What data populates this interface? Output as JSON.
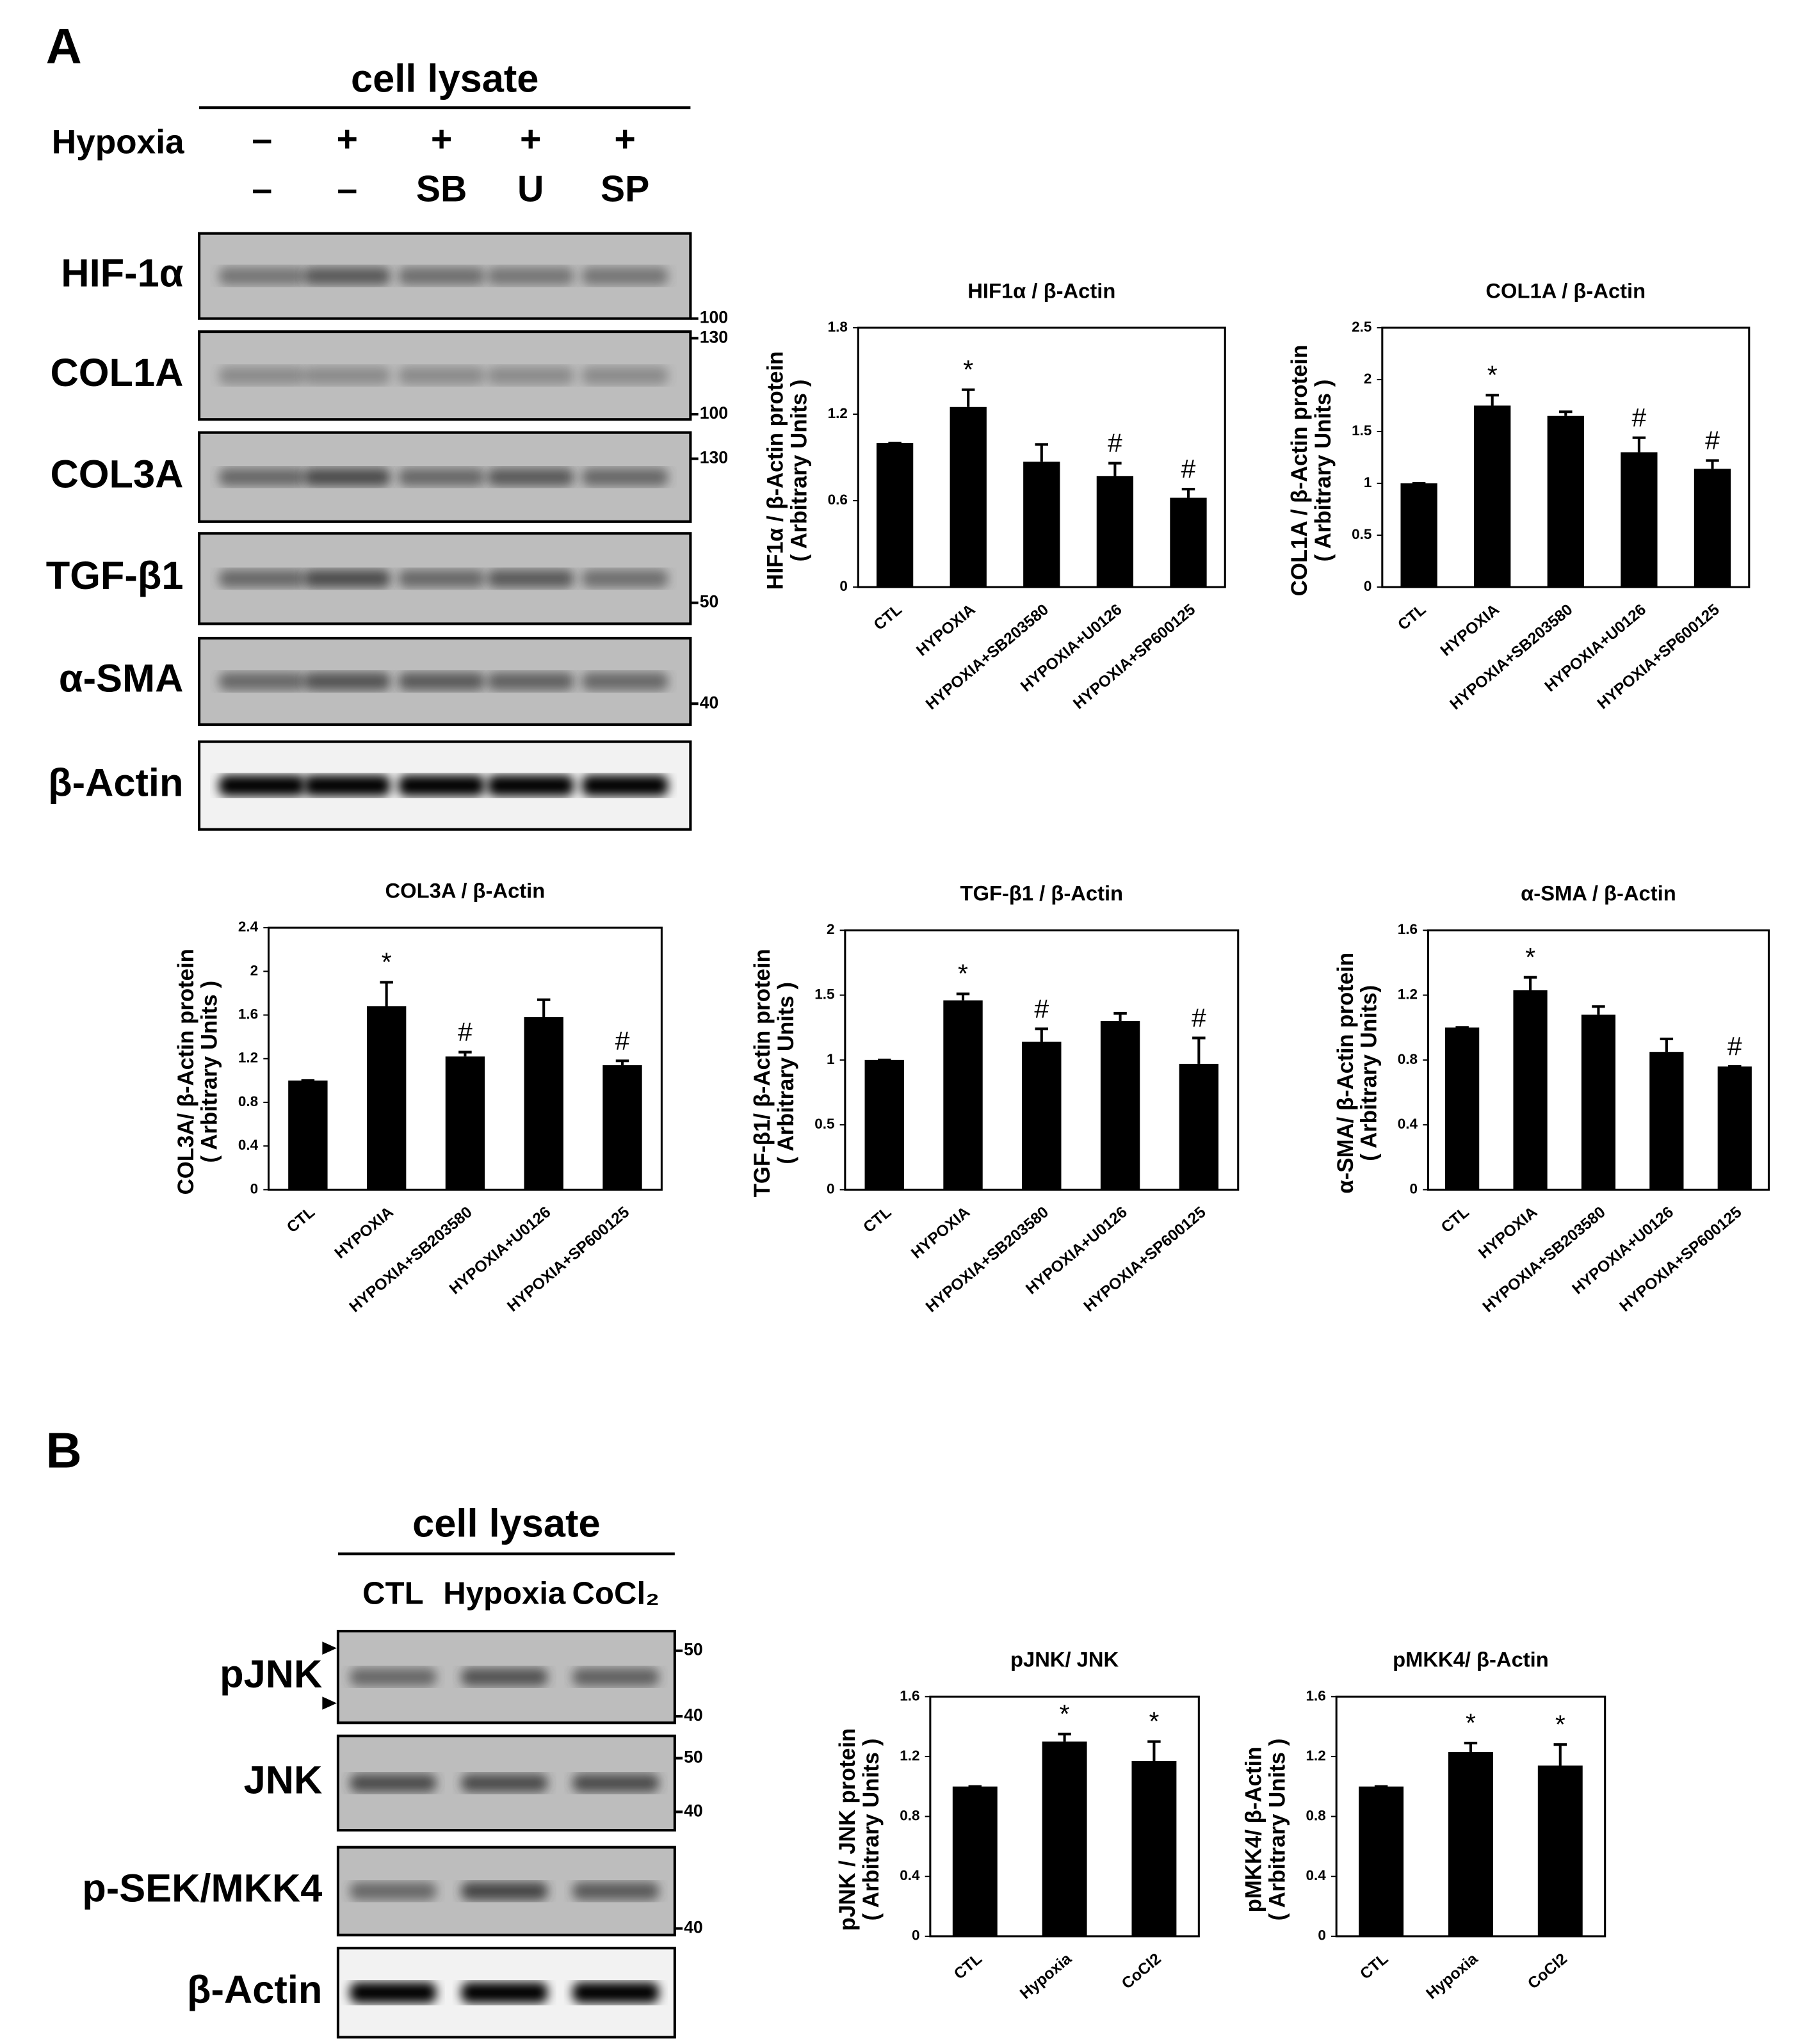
{
  "blot_a": {
    "panel": "A",
    "header": "cell lysate",
    "treatment_label": "Hypoxia",
    "row1": [
      "–",
      "+",
      "+",
      "+",
      "+"
    ],
    "row2": [
      "–",
      "–",
      "SB",
      "U",
      "SP"
    ],
    "rows": [
      {
        "label": "HIF-1α",
        "markers": [
          "100"
        ]
      },
      {
        "label": "COL1A",
        "markers": [
          "130",
          "100"
        ]
      },
      {
        "label": "COL3A",
        "markers": [
          "130"
        ]
      },
      {
        "label": "TGF-β1",
        "markers": [
          "50"
        ]
      },
      {
        "label": "α-SMA",
        "markers": [
          "40"
        ]
      },
      {
        "label": "β-Actin",
        "markers": []
      }
    ]
  },
  "blot_b": {
    "panel": "B",
    "header": "cell lysate",
    "lanes": [
      "CTL",
      "Hypoxia",
      "CoCl₂"
    ],
    "rows": [
      {
        "label": "pJNK",
        "markers": [
          "50",
          "40"
        ]
      },
      {
        "label": "JNK",
        "markers": [
          "50",
          "40"
        ]
      },
      {
        "label": "p-SEK/MKK4",
        "markers": [
          "40"
        ]
      },
      {
        "label": "β-Actin",
        "markers": []
      }
    ]
  },
  "chart_data": [
    {
      "type": "bar",
      "title": "HIF1α / β-Actin",
      "ylabel": [
        "HIF1α / β-Actin protein",
        "( Arbitrary Units )"
      ],
      "categories": [
        "CTL",
        "HYPOXIA",
        "HYPOXIA+SB203580",
        "HYPOXIA+U0126",
        "HYPOXIA+SP600125"
      ],
      "values": [
        1.0,
        1.25,
        0.87,
        0.77,
        0.62
      ],
      "errors": [
        0,
        0.12,
        0.12,
        0.09,
        0.06
      ],
      "annotations": [
        null,
        "*",
        null,
        "#",
        "#"
      ],
      "color": "#000000",
      "ylim": [
        0,
        1.8
      ],
      "yticks": [
        0,
        0.6,
        1.2,
        1.8
      ]
    },
    {
      "type": "bar",
      "title": "COL1A / β-Actin",
      "ylabel": [
        "COL1A / β-Actin protein",
        "( Arbitrary Units )"
      ],
      "categories": [
        "CTL",
        "HYPOXIA",
        "HYPOXIA+SB203580",
        "HYPOXIA+U0126",
        "HYPOXIA+SP600125"
      ],
      "values": [
        1.0,
        1.75,
        1.65,
        1.3,
        1.14
      ],
      "errors": [
        0,
        0.1,
        0.04,
        0.14,
        0.08
      ],
      "annotations": [
        null,
        "*",
        null,
        "#",
        "#"
      ],
      "color": "#000000",
      "ylim": [
        0,
        2.5
      ],
      "yticks": [
        0,
        0.5,
        1,
        1.5,
        2,
        2.5
      ]
    },
    {
      "type": "bar",
      "title": "COL3A / β-Actin",
      "ylabel": [
        "COL3A/ β-Actin protein",
        "( Arbitrary Units )"
      ],
      "categories": [
        "CTL",
        "HYPOXIA",
        "HYPOXIA+SB203580",
        "HYPOXIA+U0126",
        "HYPOXIA+SP600125"
      ],
      "values": [
        1.0,
        1.68,
        1.22,
        1.58,
        1.14
      ],
      "errors": [
        0,
        0.22,
        0.04,
        0.16,
        0.04
      ],
      "annotations": [
        null,
        "*",
        "#",
        null,
        "#"
      ],
      "color": "#000000",
      "ylim": [
        0,
        2.4
      ],
      "yticks": [
        0,
        0.4,
        0.8,
        1.2,
        1.6,
        2,
        2.4
      ]
    },
    {
      "type": "bar",
      "title": "TGF-β1 / β-Actin",
      "ylabel": [
        "TGF-β1/ β-Actin protein",
        "( Arbitrary Units )"
      ],
      "categories": [
        "CTL",
        "HYPOXIA",
        "HYPOXIA+SB203580",
        "HYPOXIA+U0126",
        "HYPOXIA+SP600125"
      ],
      "values": [
        1.0,
        1.46,
        1.14,
        1.3,
        0.97
      ],
      "errors": [
        0,
        0.05,
        0.1,
        0.06,
        0.2
      ],
      "annotations": [
        null,
        "*",
        "#",
        null,
        "#"
      ],
      "color": "#000000",
      "ylim": [
        0,
        2
      ],
      "yticks": [
        0,
        0.5,
        1,
        1.5,
        2
      ]
    },
    {
      "type": "bar",
      "title": "α-SMA / β-Actin",
      "ylabel": [
        "α-SMA/ β-Actin protein",
        "( Arbitrary Units)"
      ],
      "categories": [
        "CTL",
        "HYPOXIA",
        "HYPOXIA+SB203580",
        "HYPOXIA+U0126",
        "HYPOXIA+SP600125"
      ],
      "values": [
        1.0,
        1.23,
        1.08,
        0.85,
        0.76
      ],
      "errors": [
        0,
        0.08,
        0.05,
        0.08,
        0
      ],
      "annotations": [
        null,
        "*",
        null,
        null,
        "#"
      ],
      "color": "#000000",
      "ylim": [
        0,
        1.6
      ],
      "yticks": [
        0,
        0.4,
        0.8,
        1.2,
        1.6
      ]
    },
    {
      "type": "bar",
      "title": "pJNK/ JNK",
      "ylabel": [
        "pJNK / JNK protein",
        "( Arbitrary Units )"
      ],
      "categories": [
        "CTL",
        "Hypoxia",
        "CoCl2"
      ],
      "values": [
        1.0,
        1.3,
        1.17
      ],
      "errors": [
        0,
        0.05,
        0.13
      ],
      "annotations": [
        null,
        "*",
        "*"
      ],
      "color": "#000000",
      "ylim": [
        0,
        1.6
      ],
      "yticks": [
        0,
        0.4,
        0.8,
        1.2,
        1.6
      ]
    },
    {
      "type": "bar",
      "title": "pMKK4/ β-Actin",
      "ylabel": [
        "pMKK4/ β-Actin",
        "( Arbitrary Units )"
      ],
      "categories": [
        "CTL",
        "Hypoxia",
        "CoCl2"
      ],
      "values": [
        1.0,
        1.23,
        1.14
      ],
      "errors": [
        0,
        0.06,
        0.14
      ],
      "annotations": [
        null,
        "*",
        "*"
      ],
      "color": "#000000",
      "ylim": [
        0,
        1.6
      ],
      "yticks": [
        0,
        0.4,
        0.8,
        1.2,
        1.6
      ]
    }
  ]
}
